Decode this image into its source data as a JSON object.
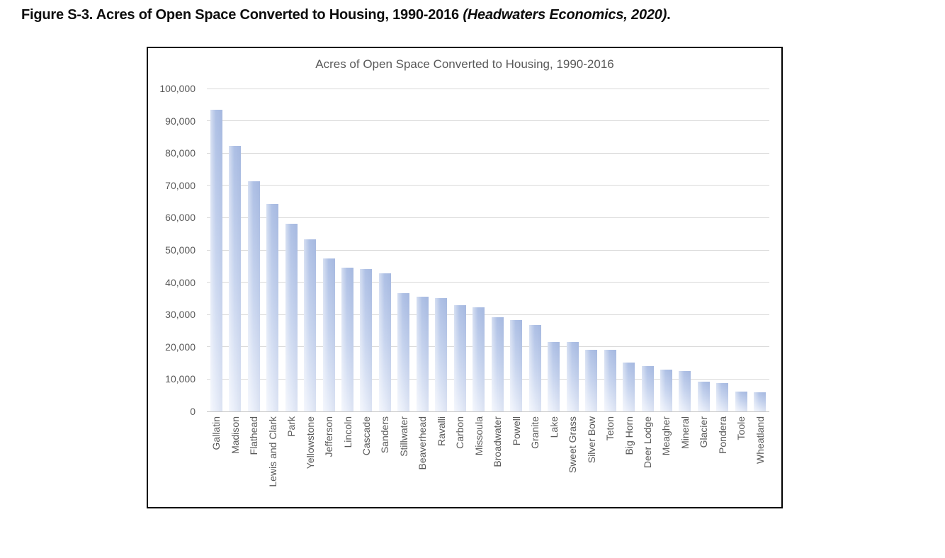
{
  "figure_caption": {
    "prefix": "Figure S-3. Acres of Open Space Converted to Housing, 1990-2016 ",
    "source_italic": "(Headwaters Economics, 2020)",
    "suffix": "."
  },
  "chart_data": {
    "type": "bar",
    "title": "Acres of Open Space Converted to Housing, 1990-2016",
    "xlabel": "",
    "ylabel": "",
    "categories": [
      "Gallatin",
      "Madison",
      "Flathead",
      "Lewis and Clark",
      "Park",
      "Yellowstone",
      "Jefferson",
      "Lincoln",
      "Cascade",
      "Sanders",
      "Stillwater",
      "Beaverhead",
      "Ravalli",
      "Carbon",
      "Missoula",
      "Broadwater",
      "Powell",
      "Granite",
      "Lake",
      "Sweet Grass",
      "Silver Bow",
      "Teton",
      "Big Horn",
      "Deer Lodge",
      "Meagher",
      "Mineral",
      "Glacier",
      "Pondera",
      "Toole",
      "Wheatland"
    ],
    "values": [
      93500,
      82300,
      71300,
      64200,
      58100,
      53300,
      47400,
      44600,
      44000,
      42700,
      36600,
      35600,
      35000,
      32900,
      32200,
      29200,
      28400,
      26800,
      21600,
      21400,
      19100,
      19000,
      15100,
      14000,
      12900,
      12400,
      9200,
      8700,
      6100,
      6000
    ],
    "ylim": [
      0,
      100000
    ],
    "ytick_interval": 10000,
    "ytick_labels": [
      "0",
      "10,000",
      "20,000",
      "30,000",
      "40,000",
      "50,000",
      "60,000",
      "70,000",
      "80,000",
      "90,000",
      "100,000"
    ],
    "grid": "horizontal",
    "legend": "none",
    "bar_color_top": "#aec0e5",
    "bar_color_bottom": "#eaeffa",
    "gridline_color": "#d9d9d9",
    "title_color": "#595959",
    "axis_label_color": "#595959",
    "frame_border_color": "#000000"
  }
}
